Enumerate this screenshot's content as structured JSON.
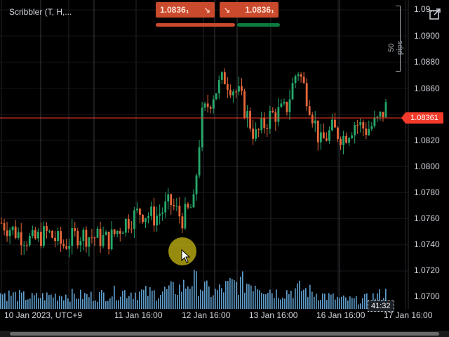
{
  "indicator_title": "Scribbler (T, H,...",
  "trade": {
    "sell_price": "1.0836₁",
    "buy_price": "1.0836₁",
    "sell_arrow": "↘",
    "buy_arrow": "↘",
    "sell_color": "#c94a2c",
    "buy_color": "#0d7a3e"
  },
  "price_axis": {
    "labels": [
      "1.09...",
      "1.0900",
      "1.0880",
      "1.0860",
      "1.0820",
      "1.0800",
      "1.0780",
      "1.0760",
      "1.0740",
      "1.0720",
      "1.0700"
    ],
    "current_price": "1.08361",
    "current_price_color": "#f23b2a",
    "measure_label": "50 pips"
  },
  "time_axis": {
    "labels": [
      "10 Jan 2023, UTC+9",
      "11 Jan 16:00",
      "12 Jan 16:00",
      "13 Jan 16:00",
      "16 Jan 16:00",
      "17 Jan 16:00"
    ],
    "cursor_time": "41:32"
  },
  "icons": {
    "popout": "popout-icon",
    "cursor": "mouse-pointer-icon"
  },
  "chart_data": {
    "type": "candlestick",
    "x_start": "10 Jan 2023",
    "x_end": "17 Jan 2023",
    "ylim": [
      1.0693,
      1.0912
    ],
    "current_price": 1.08361,
    "up_color": "#26a86a",
    "down_color": "#e8673a",
    "volume_color": "#6fb8ee",
    "grid": true,
    "close_path": [
      [
        0,
        1.0754
      ],
      [
        0.04,
        1.0747
      ],
      [
        0.08,
        1.0741
      ],
      [
        0.12,
        1.0747
      ],
      [
        0.16,
        1.0738
      ],
      [
        0.2,
        1.0746
      ],
      [
        0.24,
        1.0744
      ],
      [
        0.28,
        1.0742
      ],
      [
        0.32,
        1.0754
      ],
      [
        0.36,
        1.0762
      ],
      [
        0.4,
        1.0758
      ],
      [
        0.44,
        1.0768
      ],
      [
        0.47,
        1.0757
      ],
      [
        0.5,
        1.0767
      ],
      [
        0.52,
        1.0828
      ],
      [
        0.55,
        1.0845
      ],
      [
        0.58,
        1.0857
      ],
      [
        0.62,
        1.0844
      ],
      [
        0.66,
        1.0815
      ],
      [
        0.7,
        1.083
      ],
      [
        0.74,
        1.0834
      ],
      [
        0.77,
        1.0864
      ],
      [
        0.8,
        1.084
      ],
      [
        0.83,
        1.081
      ],
      [
        0.86,
        1.082
      ],
      [
        0.89,
        1.0815
      ],
      [
        0.92,
        1.0825
      ],
      [
        0.95,
        1.082
      ],
      [
        0.98,
        1.0826
      ],
      [
        1.0,
        1.0836
      ]
    ],
    "volume_profile": [
      [
        0,
        0.55
      ],
      [
        0.08,
        0.4
      ],
      [
        0.16,
        0.5
      ],
      [
        0.24,
        0.45
      ],
      [
        0.32,
        0.6
      ],
      [
        0.4,
        0.55
      ],
      [
        0.47,
        0.75
      ],
      [
        0.5,
        1.0
      ],
      [
        0.55,
        0.55
      ],
      [
        0.6,
        0.85
      ],
      [
        0.66,
        0.95
      ],
      [
        0.72,
        0.55
      ],
      [
        0.78,
        0.7
      ],
      [
        0.83,
        0.5
      ],
      [
        0.88,
        0.35
      ],
      [
        0.93,
        0.3
      ],
      [
        1.0,
        0.55
      ]
    ]
  }
}
